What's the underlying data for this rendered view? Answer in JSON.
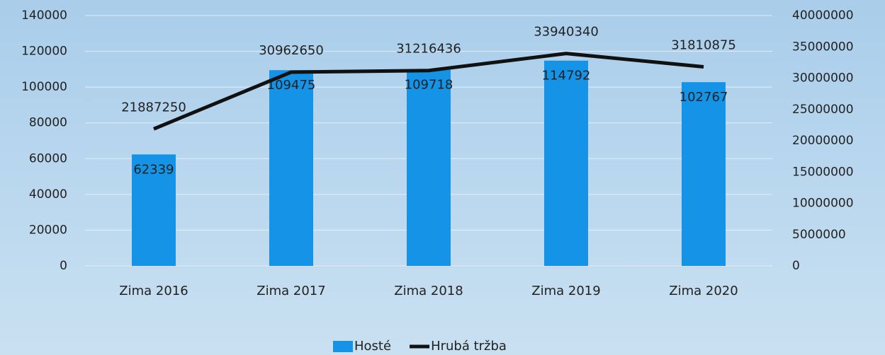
{
  "chart_data": {
    "type": "bar",
    "categories": [
      "Zima 2016",
      "Zima 2017",
      "Zima 2018",
      "Zima 2019",
      "Zima 2020"
    ],
    "series": [
      {
        "name": "Hosté",
        "color": "#1593e6",
        "type": "bar",
        "values": [
          62339,
          109475,
          109718,
          114792,
          102767
        ]
      },
      {
        "name": "Hrubá tržba",
        "color": "#111111",
        "type": "line",
        "axis": "y2",
        "values": [
          21887250,
          30962650,
          31216436,
          33940340,
          31810875
        ]
      }
    ],
    "ylim": [
      0,
      140000
    ],
    "yticks": [
      0,
      20000,
      40000,
      60000,
      80000,
      100000,
      120000,
      140000
    ],
    "y2lim": [
      0,
      40000000
    ],
    "y2ticks": [
      0,
      5000000,
      10000000,
      15000000,
      20000000,
      25000000,
      30000000,
      35000000,
      40000000
    ],
    "grid": true,
    "legend": "bottom"
  }
}
